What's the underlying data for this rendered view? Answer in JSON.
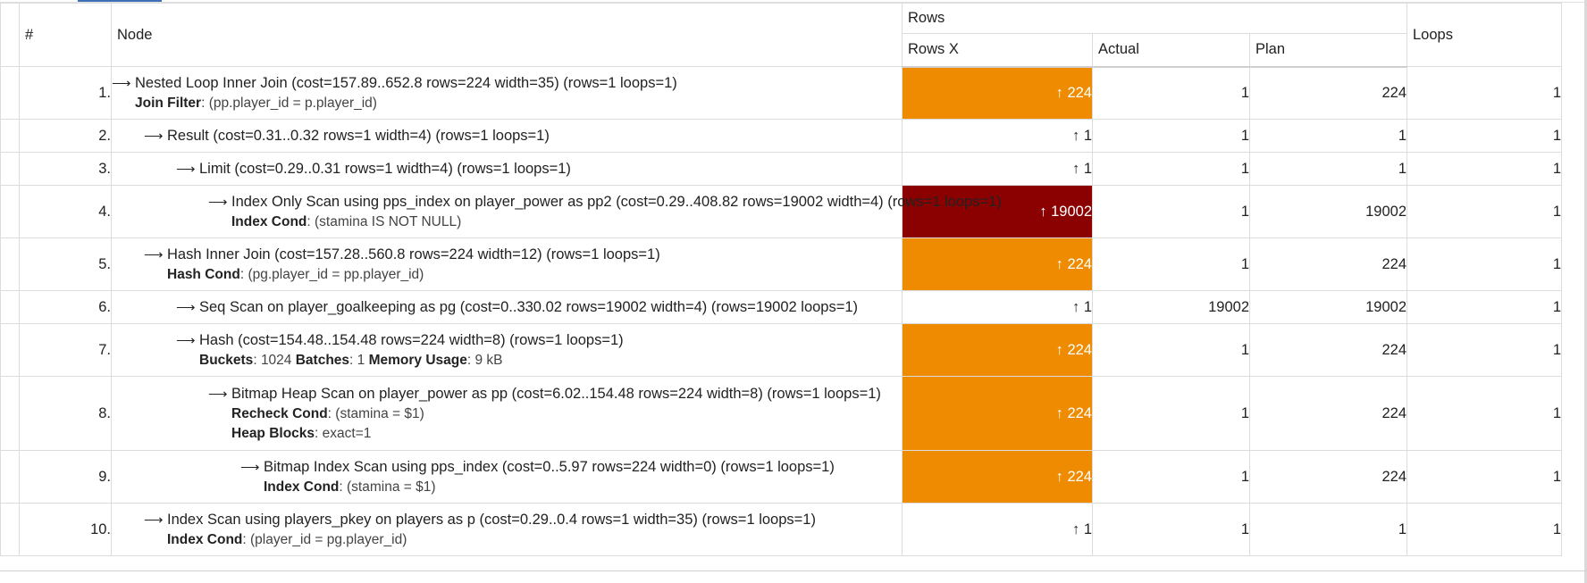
{
  "header": {
    "hash": "#",
    "node": "Node",
    "rows_group": "Rows",
    "rows_x": "Rows X",
    "actual": "Actual",
    "plan": "Plan",
    "loops": "Loops"
  },
  "colors": {
    "orange": "#ef8b00",
    "dark_red": "#8b0000"
  },
  "rows": [
    {
      "num": "1.",
      "indent": 0,
      "title": "Nested Loop Inner Join (cost=157.89..652.8 rows=224 width=35) (rows=1 loops=1)",
      "details": [
        {
          "key": "Join Filter",
          "val": "(pp.player_id = p.player_id)"
        }
      ],
      "rows_x": "↑ 224",
      "rows_x_style": "orange",
      "actual": "1",
      "plan": "224",
      "loops": "1"
    },
    {
      "num": "2.",
      "indent": 1,
      "title": "Result (cost=0.31..0.32 rows=1 width=4) (rows=1 loops=1)",
      "details": [],
      "rows_x": "↑ 1",
      "rows_x_style": "plain",
      "actual": "1",
      "plan": "1",
      "loops": "1"
    },
    {
      "num": "3.",
      "indent": 2,
      "title": "Limit (cost=0.29..0.31 rows=1 width=4) (rows=1 loops=1)",
      "details": [],
      "rows_x": "↑ 1",
      "rows_x_style": "plain",
      "actual": "1",
      "plan": "1",
      "loops": "1"
    },
    {
      "num": "4.",
      "indent": 3,
      "title": "Index Only Scan using pps_index on player_power as pp2 (cost=0.29..408.82 rows=19002 width=4) (rows=1 loops=1)",
      "details": [
        {
          "key": "Index Cond",
          "val": "(stamina IS NOT NULL)"
        }
      ],
      "rows_x": "↑ 19002",
      "rows_x_style": "dark",
      "actual": "1",
      "plan": "19002",
      "loops": "1"
    },
    {
      "num": "5.",
      "indent": 1,
      "title": "Hash Inner Join (cost=157.28..560.8 rows=224 width=12) (rows=1 loops=1)",
      "details": [
        {
          "key": "Hash Cond",
          "val": "(pg.player_id = pp.player_id)"
        }
      ],
      "rows_x": "↑ 224",
      "rows_x_style": "orange",
      "actual": "1",
      "plan": "224",
      "loops": "1"
    },
    {
      "num": "6.",
      "indent": 2,
      "title": "Seq Scan on player_goalkeeping as pg (cost=0..330.02 rows=19002 width=4) (rows=19002 loops=1)",
      "details": [],
      "rows_x": "↑ 1",
      "rows_x_style": "plain",
      "actual": "19002",
      "plan": "19002",
      "loops": "1"
    },
    {
      "num": "7.",
      "indent": 2,
      "title": "Hash (cost=154.48..154.48 rows=224 width=8) (rows=1 loops=1)",
      "details": [
        {
          "inline": [
            {
              "key": "Buckets",
              "val": "1024"
            },
            {
              "key": "Batches",
              "val": "1"
            },
            {
              "key": "Memory Usage",
              "val": "9 kB"
            }
          ]
        }
      ],
      "rows_x": "↑ 224",
      "rows_x_style": "orange",
      "actual": "1",
      "plan": "224",
      "loops": "1"
    },
    {
      "num": "8.",
      "indent": 3,
      "title": "Bitmap Heap Scan on player_power as pp (cost=6.02..154.48 rows=224 width=8) (rows=1 loops=1)",
      "details": [
        {
          "key": "Recheck Cond",
          "val": "(stamina = $1)"
        },
        {
          "key": "Heap Blocks",
          "val": "exact=1"
        }
      ],
      "rows_x": "↑ 224",
      "rows_x_style": "orange",
      "actual": "1",
      "plan": "224",
      "loops": "1"
    },
    {
      "num": "9.",
      "indent": 4,
      "title": "Bitmap Index Scan using pps_index (cost=0..5.97 rows=224 width=0) (rows=1 loops=1)",
      "details": [
        {
          "key": "Index Cond",
          "val": "(stamina = $1)"
        }
      ],
      "rows_x": "↑ 224",
      "rows_x_style": "orange",
      "actual": "1",
      "plan": "224",
      "loops": "1"
    },
    {
      "num": "10.",
      "indent": 1,
      "title": "Index Scan using players_pkey on players as p (cost=0.29..0.4 rows=1 width=35) (rows=1 loops=1)",
      "details": [
        {
          "key": "Index Cond",
          "val": "(player_id = pg.player_id)"
        }
      ],
      "rows_x": "↑ 1",
      "rows_x_style": "plain",
      "actual": "1",
      "plan": "1",
      "loops": "1"
    }
  ]
}
